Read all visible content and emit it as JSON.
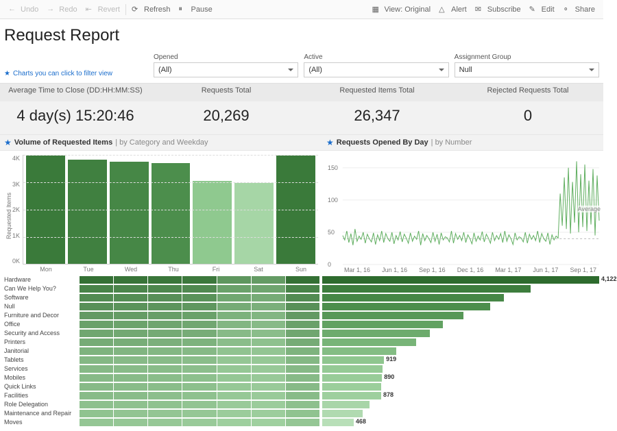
{
  "toolbar": {
    "undo": "Undo",
    "redo": "Redo",
    "revert": "Revert",
    "refresh": "Refresh",
    "pause": "Pause",
    "view": "View: Original",
    "alert": "Alert",
    "subscribe": "Subscribe",
    "edit": "Edit",
    "share": "Share"
  },
  "title": "Request Report",
  "filter_hint": "Charts you can click to filter view",
  "filters": {
    "opened": {
      "label": "Opened",
      "value": "(All)"
    },
    "active": {
      "label": "Active",
      "value": "(All)"
    },
    "assignment": {
      "label": "Assignment Group",
      "value": "Null"
    }
  },
  "kpis": [
    {
      "label": "Average Time to Close (DD:HH:MM:SS)",
      "value": "4 day(s) 15:20:46"
    },
    {
      "label": "Requests Total",
      "value": "20,269"
    },
    {
      "label": "Requested Items Total",
      "value": "26,347"
    },
    {
      "label": "Rejected Requests Total",
      "value": "0"
    }
  ],
  "bar_chart": {
    "title": "Volume of Requested Items",
    "subtitle": "by Category and Weekday",
    "y_label": "Requested Items",
    "y_max": 4200,
    "y_ticks": [
      "4K",
      "3K",
      "2K",
      "1K",
      "0K"
    ],
    "categories": [
      "Mon",
      "Tue",
      "Wed",
      "Thu",
      "Fri",
      "Sat",
      "Sun"
    ],
    "values": [
      4150,
      4000,
      3900,
      3850,
      3180,
      3100,
      4150
    ],
    "colors": [
      "#3a7a3a",
      "#408040",
      "#468746",
      "#4c8e4c",
      "#8fc98f",
      "#a6d6a6",
      "#3a7a3a"
    ]
  },
  "line_chart": {
    "title": "Requests Opened By Day",
    "subtitle": "by Number",
    "y_ticks": [
      "150",
      "100",
      "50",
      "0"
    ],
    "y_max": 170,
    "x_ticks": [
      "Mar 1, 16",
      "Jun 1, 16",
      "Sep 1, 16",
      "Dec 1, 16",
      "Mar 1, 17",
      "Jun 1, 17",
      "Sep 1, 17"
    ],
    "avg_label": "Average",
    "avg_y": 40,
    "color": "#5fae5f",
    "points": [
      45,
      38,
      52,
      34,
      48,
      30,
      55,
      36,
      44,
      39,
      50,
      33,
      47,
      40,
      35,
      49,
      31,
      46,
      37,
      52,
      34,
      48,
      40,
      36,
      50,
      32,
      45,
      38,
      51,
      35,
      47,
      41,
      33,
      49,
      36,
      44,
      39,
      52,
      30,
      48,
      37,
      45,
      40,
      34,
      50,
      36,
      47,
      31,
      49,
      38,
      43,
      41,
      35,
      52,
      33,
      48,
      39,
      45,
      37,
      50,
      34,
      46,
      40,
      32,
      49,
      36,
      44,
      38,
      51,
      35,
      47,
      41,
      33,
      50,
      37,
      45,
      39,
      48,
      34,
      52,
      36,
      46,
      40,
      31,
      49,
      38,
      43,
      41,
      35,
      50,
      33,
      47,
      39,
      45,
      37,
      52,
      34,
      48,
      40,
      36,
      49,
      31,
      46,
      38,
      44,
      41,
      110,
      60,
      135,
      55,
      150,
      48,
      128,
      65,
      160,
      50,
      140,
      58,
      155,
      52,
      130,
      62,
      148,
      45,
      138,
      68
    ]
  },
  "categories": {
    "max": 4122,
    "heat_palette_low": "#a6d6a6",
    "heat_palette_high": "#2e6b2e",
    "rows": [
      {
        "label": "Hardware",
        "total": 4122,
        "show_val": true,
        "bar_color": "#2e6b2e",
        "heat": [
          0.95,
          0.92,
          0.9,
          0.88,
          0.6,
          0.55,
          0.95
        ]
      },
      {
        "label": "Can We Help You?",
        "total": 3100,
        "bar_color": "#3d7d3d",
        "heat": [
          0.78,
          0.76,
          0.74,
          0.72,
          0.5,
          0.46,
          0.78
        ]
      },
      {
        "label": "Software",
        "total": 2700,
        "bar_color": "#468746",
        "heat": [
          0.7,
          0.68,
          0.66,
          0.64,
          0.44,
          0.4,
          0.7
        ]
      },
      {
        "label": "Null",
        "total": 2500,
        "bar_color": "#4c8e4c",
        "heat": [
          0.65,
          0.63,
          0.61,
          0.59,
          0.4,
          0.36,
          0.65
        ]
      },
      {
        "label": "Furniture and Decor",
        "total": 2100,
        "bar_color": "#579857",
        "heat": [
          0.56,
          0.54,
          0.52,
          0.5,
          0.34,
          0.3,
          0.56
        ]
      },
      {
        "label": "Office",
        "total": 1800,
        "bar_color": "#62a262",
        "heat": [
          0.5,
          0.48,
          0.46,
          0.44,
          0.3,
          0.26,
          0.5
        ]
      },
      {
        "label": "Security and Access",
        "total": 1600,
        "bar_color": "#6dab6d",
        "heat": [
          0.45,
          0.43,
          0.41,
          0.39,
          0.26,
          0.23,
          0.45
        ]
      },
      {
        "label": "Printers",
        "total": 1400,
        "bar_color": "#78b478",
        "heat": [
          0.4,
          0.38,
          0.36,
          0.34,
          0.23,
          0.2,
          0.4
        ]
      },
      {
        "label": "Janitorial",
        "total": 1100,
        "bar_color": "#84bd84",
        "heat": [
          0.33,
          0.31,
          0.29,
          0.27,
          0.18,
          0.16,
          0.33
        ]
      },
      {
        "label": "Tablets",
        "total": 919,
        "show_val": true,
        "bar_color": "#8fc68f",
        "heat": [
          0.28,
          0.26,
          0.25,
          0.23,
          0.15,
          0.13,
          0.28
        ]
      },
      {
        "label": "Services",
        "total": 900,
        "bar_color": "#95ca95",
        "heat": [
          0.27,
          0.25,
          0.24,
          0.22,
          0.14,
          0.12,
          0.27
        ]
      },
      {
        "label": "Mobiles",
        "total": 890,
        "show_val": true,
        "bar_color": "#98cc98",
        "heat": [
          0.26,
          0.25,
          0.23,
          0.21,
          0.14,
          0.12,
          0.26
        ]
      },
      {
        "label": "Quick Links",
        "total": 880,
        "bar_color": "#9bce9b",
        "heat": [
          0.26,
          0.24,
          0.23,
          0.21,
          0.13,
          0.11,
          0.26
        ]
      },
      {
        "label": "Facilities",
        "total": 878,
        "show_val": true,
        "bar_color": "#9ecf9e",
        "heat": [
          0.25,
          0.24,
          0.22,
          0.2,
          0.13,
          0.11,
          0.25
        ]
      },
      {
        "label": "Role Delegation",
        "total": 700,
        "bar_color": "#a8d5a8",
        "heat": [
          0.21,
          0.2,
          0.19,
          0.17,
          0.11,
          0.09,
          0.21
        ]
      },
      {
        "label": "Maintenance and Repair",
        "total": 600,
        "bar_color": "#b0dab0",
        "heat": [
          0.18,
          0.17,
          0.16,
          0.14,
          0.09,
          0.08,
          0.18
        ]
      },
      {
        "label": "Moves",
        "total": 468,
        "show_val": true,
        "bar_color": "#b8dfb8",
        "heat": [
          0.15,
          0.14,
          0.13,
          0.11,
          0.07,
          0.06,
          0.15
        ]
      }
    ]
  }
}
